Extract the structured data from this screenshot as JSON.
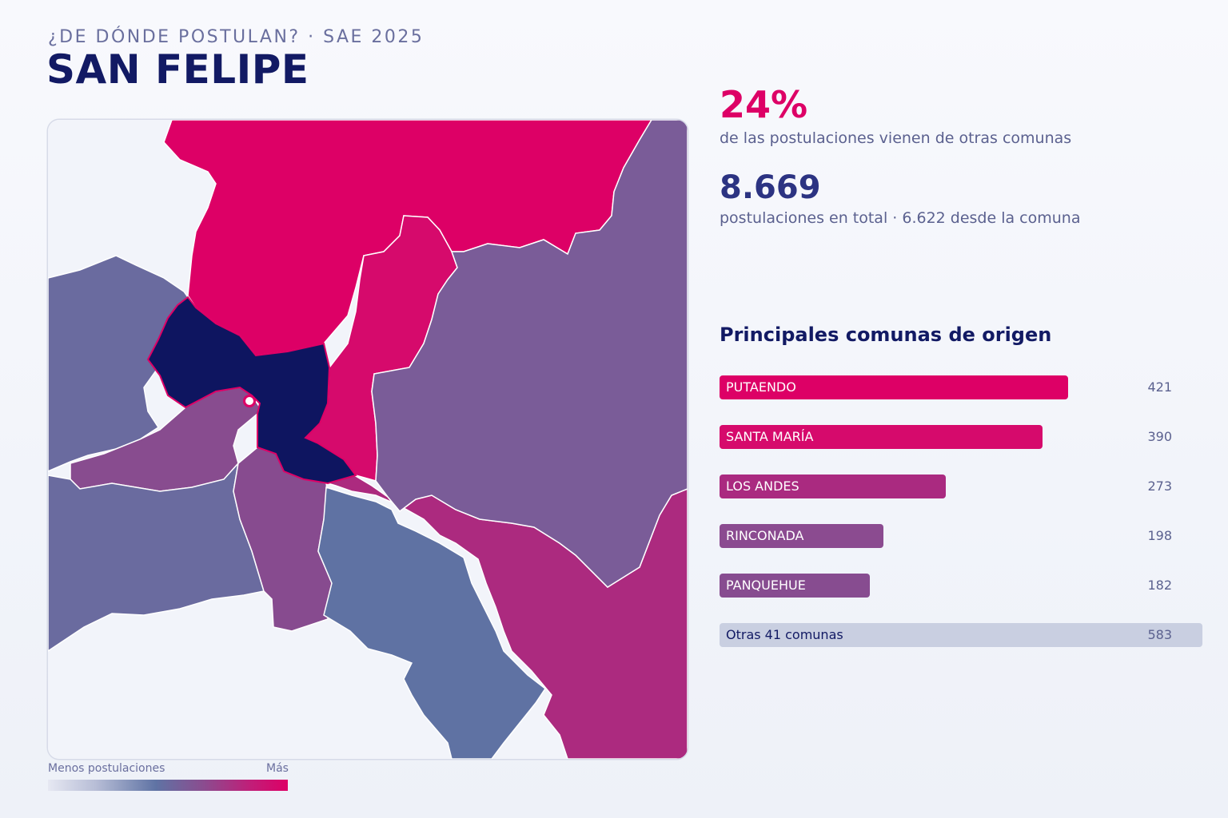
{
  "header": {
    "supertitle": "¿DE DÓNDE POSTULAN? · SAE 2025",
    "title": "SAN FELIPE"
  },
  "stats": {
    "pct_value": "24%",
    "pct_text": "de las postulaciones vienen de otras comunas",
    "total_value": "8.669",
    "total_text": "postulaciones en total · 6.622 desde la comuna"
  },
  "ranking": {
    "title": "Principales comunas de origen",
    "max_value": 421,
    "items": [
      {
        "name": "PUTAENDO",
        "value": 421,
        "color": "#dd0066"
      },
      {
        "name": "SANTA MARÍA",
        "value": 390,
        "color": "#d60a6c"
      },
      {
        "name": "LOS ANDES",
        "value": 273,
        "color": "#aa2a80"
      },
      {
        "name": "RINCONADA",
        "value": 198,
        "color": "#8b4b90"
      },
      {
        "name": "PANQUEHUE",
        "value": 182,
        "color": "#874c90"
      }
    ],
    "others": {
      "name": "Otras 41 comunas",
      "value": 583,
      "color": "#c9cfe1"
    }
  },
  "legend": {
    "low": "Menos postulaciones",
    "high": "Más"
  },
  "colors": {
    "accent": "#dd0066",
    "navy": "#121a64",
    "highlight_commune": "#0e1560"
  }
}
